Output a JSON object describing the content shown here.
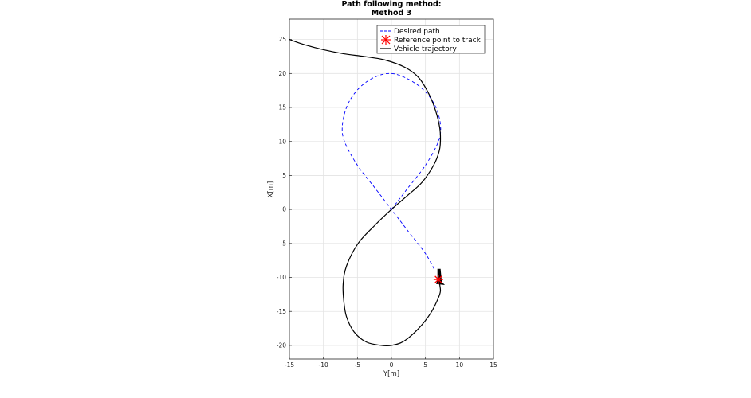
{
  "chart_data": {
    "type": "line",
    "title": "Path following method:",
    "subtitle": "Method 3",
    "xlabel": "Y[m]",
    "ylabel": "X[m]",
    "xlim": [
      -15,
      15
    ],
    "ylim": [
      -22,
      28
    ],
    "xticks": [
      -15,
      -10,
      -5,
      0,
      5,
      10,
      15
    ],
    "yticks": [
      -20,
      -15,
      -10,
      -5,
      0,
      5,
      10,
      15,
      20,
      25
    ],
    "grid": true,
    "legend_position": "top-right",
    "series": [
      {
        "name": "Desired path",
        "style": "dashed",
        "color": "#0000ff",
        "x": [
          0,
          2.3,
          5.0,
          6.9,
          7.2,
          6.4,
          4.7,
          2.4,
          0,
          -2.4,
          -4.7,
          -6.4,
          -7.2,
          -6.9,
          -5.0,
          -2.3,
          0,
          2.3,
          5.0,
          6.4
        ],
        "y": [
          0,
          3.0,
          6.5,
          10.0,
          12.5,
          15.3,
          17.6,
          19.2,
          20.0,
          19.5,
          17.9,
          15.5,
          12.5,
          10.0,
          6.5,
          3.0,
          0,
          -3.0,
          -6.5,
          -9.0
        ]
      },
      {
        "name": "Reference point to track",
        "style": "marker",
        "color": "#ff0000",
        "x": [
          6.9
        ],
        "y": [
          -10.3
        ]
      },
      {
        "name": "Vehicle trajectory",
        "style": "solid",
        "color": "#000000",
        "x": [
          -15,
          -13,
          -10,
          -7,
          -4,
          -1,
          2,
          4,
          5.5,
          6.5,
          7.1,
          7.2,
          7.0,
          6.2,
          4.5,
          2.3,
          0,
          -2.4,
          -4.9,
          -6.6,
          -7.1,
          -7.0,
          -6.6,
          -5.5,
          -3.7,
          -1.5,
          0,
          1.8,
          4.0,
          5.8,
          6.9,
          7.2,
          7.1,
          7.0
        ],
        "y": [
          25,
          24.3,
          23.5,
          22.9,
          22.5,
          22.0,
          20.9,
          19.4,
          17.0,
          14.5,
          12.0,
          10.0,
          8.5,
          6.5,
          4.0,
          2.0,
          0,
          -2.3,
          -5.0,
          -8.3,
          -11.0,
          -13.5,
          -15.8,
          -18.0,
          -19.5,
          -20.0,
          -20.0,
          -19.4,
          -17.5,
          -15.2,
          -13.0,
          -12.0,
          -11.0,
          -9.5
        ]
      }
    ]
  }
}
